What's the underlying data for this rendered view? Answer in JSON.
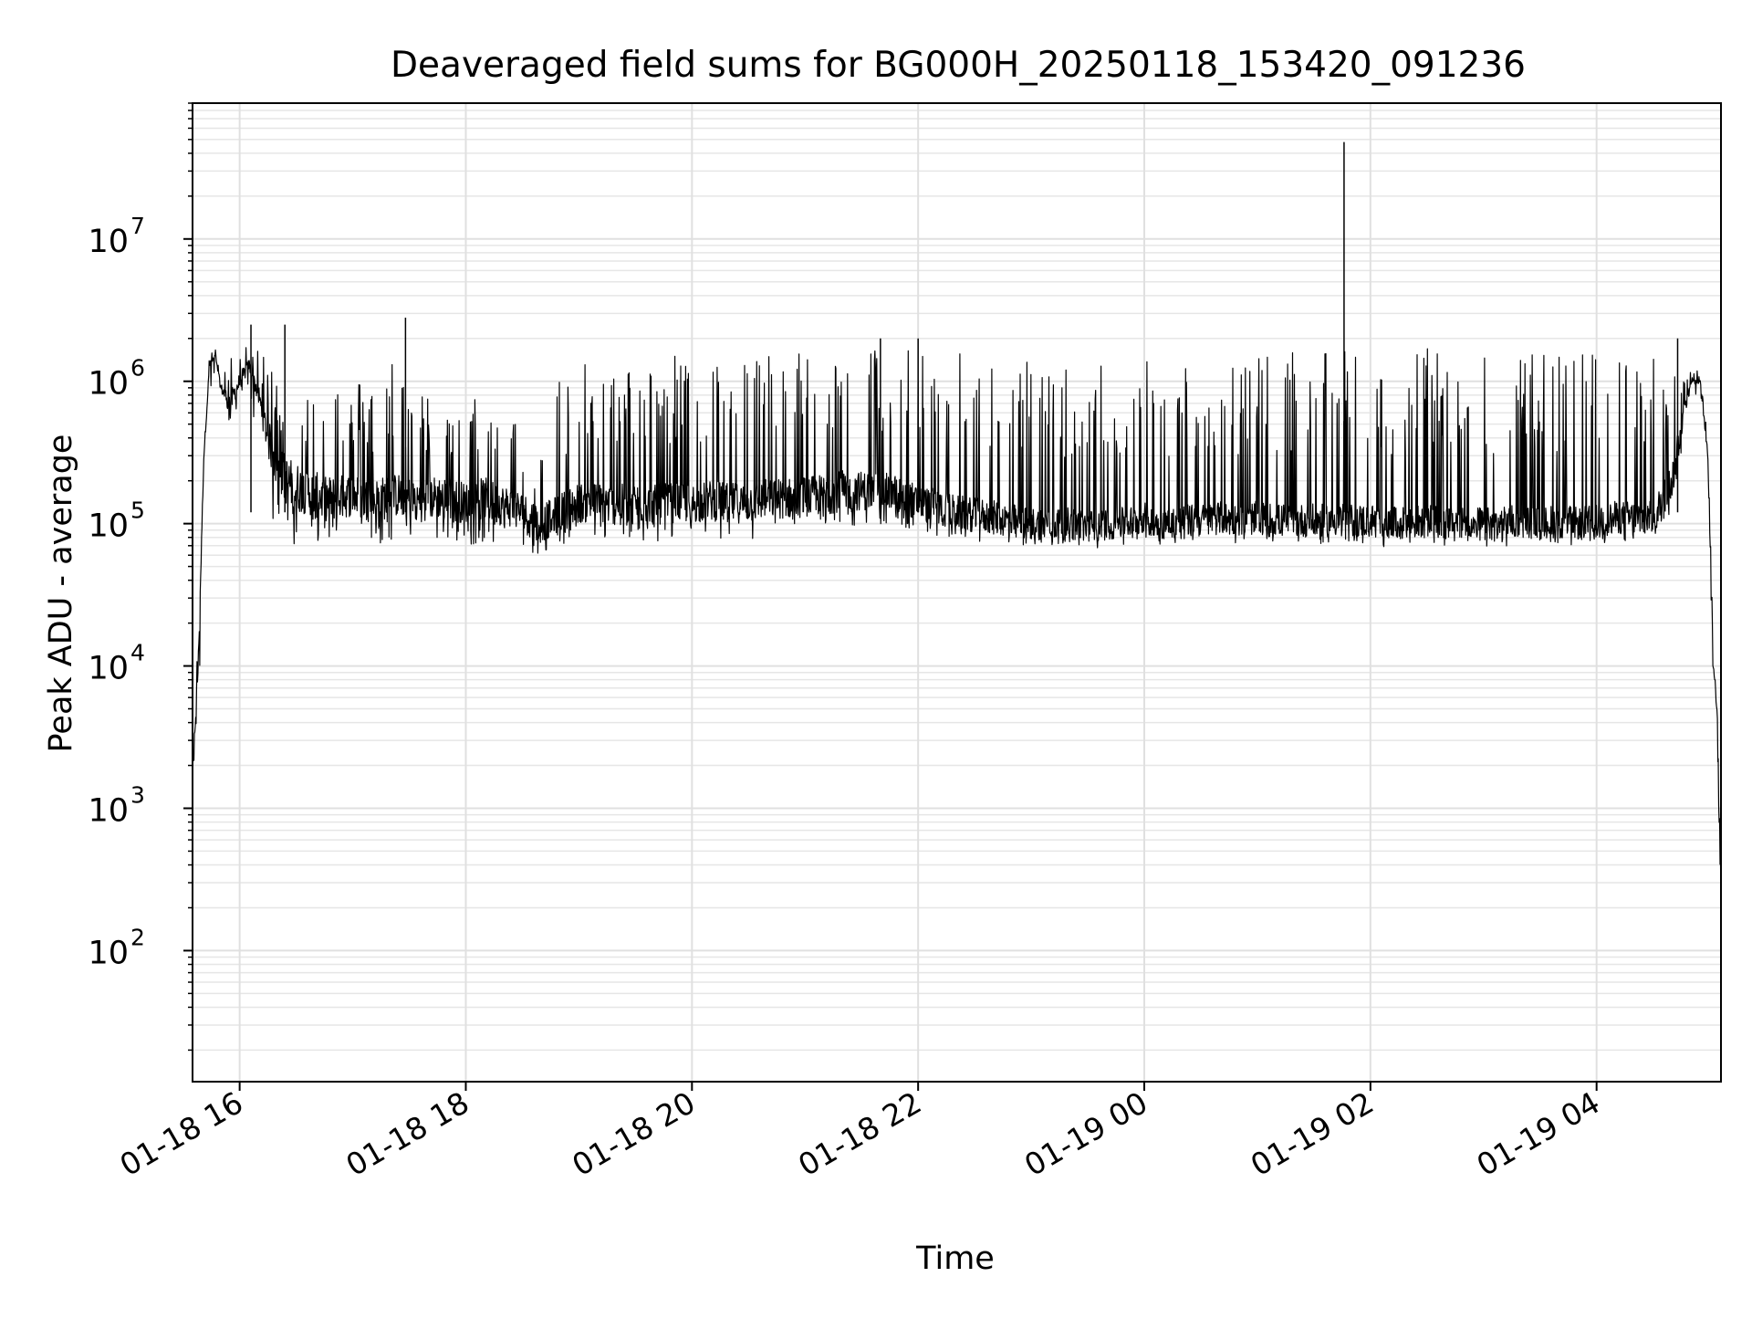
{
  "chart_data": {
    "type": "line",
    "title": "Deaveraged field sums for BG000H_20250118_153420_091236",
    "xlabel": "Time",
    "ylabel": "Peak ADU - average",
    "x_range": [
      "2025-01-18 15:35",
      "2025-01-19 05:06"
    ],
    "ylim": [
      12,
      90000000
    ],
    "y_scale": "log",
    "grid": true,
    "line_color": "#000000",
    "x_ticks": [
      {
        "t": "2025-01-18 16:00",
        "label": "01-18 16"
      },
      {
        "t": "2025-01-18 18:00",
        "label": "01-18 18"
      },
      {
        "t": "2025-01-18 20:00",
        "label": "01-18 20"
      },
      {
        "t": "2025-01-18 22:00",
        "label": "01-18 22"
      },
      {
        "t": "2025-01-19 00:00",
        "label": "01-19 00"
      },
      {
        "t": "2025-01-19 02:00",
        "label": "01-19 02"
      },
      {
        "t": "2025-01-19 04:00",
        "label": "01-19 04"
      }
    ],
    "y_ticks": [
      {
        "value": 100,
        "base": "10",
        "exp": "2"
      },
      {
        "value": 1000,
        "base": "10",
        "exp": "3"
      },
      {
        "value": 10000,
        "base": "10",
        "exp": "4"
      },
      {
        "value": 100000,
        "base": "10",
        "exp": "5"
      },
      {
        "value": 1000000,
        "base": "10",
        "exp": "6"
      },
      {
        "value": 10000000,
        "base": "10",
        "exp": "7"
      }
    ],
    "series": [
      {
        "x": [
          "2025-01-18 15:35",
          "2025-01-18 15:38",
          "2025-01-18 15:41",
          "2025-01-18 15:44",
          "2025-01-18 15:47",
          "2025-01-18 15:50",
          "2025-01-18 15:55",
          "2025-01-18 16:00",
          "2025-01-18 16:05",
          "2025-01-18 16:10",
          "2025-01-18 16:15",
          "2025-01-18 16:20",
          "2025-01-18 16:25",
          "2025-01-18 16:30",
          "2025-01-18 16:35",
          "2025-01-18 16:40",
          "2025-01-18 16:45",
          "2025-01-18 16:50",
          "2025-01-18 16:55",
          "2025-01-18 17:00",
          "2025-01-18 17:05",
          "2025-01-18 17:10",
          "2025-01-18 17:15",
          "2025-01-18 17:20",
          "2025-01-18 17:25",
          "2025-01-18 17:30",
          "2025-01-18 17:35",
          "2025-01-18 17:40",
          "2025-01-18 17:45",
          "2025-01-18 17:50",
          "2025-01-18 17:55",
          "2025-01-18 18:00",
          "2025-01-18 18:05",
          "2025-01-18 18:10",
          "2025-01-18 18:15",
          "2025-01-18 18:20",
          "2025-01-18 18:25",
          "2025-01-18 18:30",
          "2025-01-18 18:35",
          "2025-01-18 18:40",
          "2025-01-18 18:45",
          "2025-01-18 18:50",
          "2025-01-18 18:55",
          "2025-01-18 19:00",
          "2025-01-18 19:10",
          "2025-01-18 19:20",
          "2025-01-18 19:30",
          "2025-01-18 19:40",
          "2025-01-18 19:50",
          "2025-01-18 20:00",
          "2025-01-18 20:10",
          "2025-01-18 20:20",
          "2025-01-18 20:30",
          "2025-01-18 20:40",
          "2025-01-18 20:50",
          "2025-01-18 21:00",
          "2025-01-18 21:10",
          "2025-01-18 21:20",
          "2025-01-18 21:30",
          "2025-01-18 21:40",
          "2025-01-18 21:50",
          "2025-01-18 22:00",
          "2025-01-18 22:10",
          "2025-01-18 22:20",
          "2025-01-18 22:30",
          "2025-01-18 22:40",
          "2025-01-18 22:50",
          "2025-01-18 23:00",
          "2025-01-18 23:10",
          "2025-01-18 23:20",
          "2025-01-18 23:30",
          "2025-01-18 23:40",
          "2025-01-18 23:50",
          "2025-01-19 00:00",
          "2025-01-19 00:10",
          "2025-01-19 00:20",
          "2025-01-19 00:30",
          "2025-01-19 00:40",
          "2025-01-19 00:50",
          "2025-01-19 01:00",
          "2025-01-19 01:10",
          "2025-01-19 01:20",
          "2025-01-19 01:30",
          "2025-01-19 01:40",
          "2025-01-19 01:46",
          "2025-01-19 01:50",
          "2025-01-19 02:00",
          "2025-01-19 02:10",
          "2025-01-19 02:20",
          "2025-01-19 02:30",
          "2025-01-19 02:40",
          "2025-01-19 02:50",
          "2025-01-19 03:00",
          "2025-01-19 03:10",
          "2025-01-19 03:20",
          "2025-01-19 03:30",
          "2025-01-19 03:40",
          "2025-01-19 03:50",
          "2025-01-19 04:00",
          "2025-01-19 04:10",
          "2025-01-19 04:20",
          "2025-01-19 04:30",
          "2025-01-19 04:40",
          "2025-01-19 04:45",
          "2025-01-19 04:50",
          "2025-01-19 04:55",
          "2025-01-19 04:59",
          "2025-01-19 05:02",
          "2025-01-19 05:04",
          "2025-01-19 05:06"
        ],
        "y_low": [
          1200,
          5000,
          30000,
          700000,
          1100000,
          700000,
          500000,
          600000,
          1000000,
          300000,
          120000,
          90000,
          80000,
          70000,
          75000,
          72000,
          68000,
          70000,
          72000,
          80000,
          75000,
          70000,
          72000,
          75000,
          78000,
          72000,
          70000,
          75000,
          76000,
          70000,
          68000,
          70000,
          72000,
          75000,
          70000,
          72000,
          70000,
          65000,
          60000,
          60000,
          65000,
          70000,
          70000,
          75000,
          75000,
          72000,
          74000,
          73000,
          75000,
          76000,
          78000,
          74000,
          75000,
          80000,
          79000,
          82000,
          85000,
          90000,
          95000,
          98000,
          92000,
          85000,
          80000,
          78000,
          75000,
          72000,
          70000,
          70000,
          68000,
          70000,
          65000,
          68000,
          70000,
          80000,
          70000,
          74000,
          72000,
          75000,
          73000,
          74000,
          70000,
          72000,
          71000,
          73000,
          74000,
          72000,
          70000,
          68000,
          68000,
          70000,
          69000,
          70000,
          68000,
          68000,
          70000,
          70000,
          70000,
          70000,
          70000,
          75000,
          75000,
          75000,
          120000,
          300000,
          700000,
          800000,
          150000,
          7000,
          3000,
          200
        ],
        "y_mid": [
          1800,
          10000,
          300000,
          1300000,
          1500000,
          900000,
          700000,
          1000000,
          1300000,
          800000,
          400000,
          250000,
          200000,
          180000,
          170000,
          160000,
          150000,
          150000,
          155000,
          160000,
          150000,
          145000,
          150000,
          155000,
          160000,
          150000,
          145000,
          150000,
          155000,
          150000,
          145000,
          140000,
          145000,
          150000,
          140000,
          135000,
          130000,
          120000,
          110000,
          100000,
          110000,
          120000,
          130000,
          140000,
          140000,
          135000,
          140000,
          135000,
          140000,
          140000,
          145000,
          140000,
          140000,
          150000,
          150000,
          155000,
          160000,
          170000,
          170000,
          170000,
          160000,
          140000,
          130000,
          120000,
          115000,
          110000,
          105000,
          100000,
          100000,
          100000,
          95000,
          100000,
          100000,
          110000,
          100000,
          105000,
          105000,
          110000,
          105000,
          110000,
          105000,
          105000,
          105000,
          105000,
          110000,
          105000,
          105000,
          100000,
          100000,
          105000,
          100000,
          105000,
          100000,
          100000,
          105000,
          100000,
          105000,
          100000,
          105000,
          110000,
          110000,
          110000,
          200000,
          500000,
          1000000,
          1000000,
          300000,
          10000,
          5000,
          300
        ],
        "y_high": [
          2500,
          20000,
          400000,
          1600000,
          1700000,
          1200000,
          1500000,
          1700000,
          2000000,
          1600000,
          1400000,
          1200000,
          1000000,
          900000,
          900000,
          1000000,
          1300000,
          1500000,
          1000000,
          800000,
          1200000,
          1000000,
          700000,
          1600000,
          1300000,
          900000,
          1000000,
          800000,
          700000,
          900000,
          600000,
          500000,
          800000,
          600000,
          800000,
          500000,
          1000000,
          600000,
          400000,
          300000,
          700000,
          1500000,
          1000000,
          1300000,
          1400000,
          1200000,
          1500000,
          1300000,
          1600000,
          1500000,
          1600000,
          1200000,
          1700000,
          1700000,
          1800000,
          1700000,
          1900000,
          1800000,
          1700000,
          1800000,
          1800000,
          1800000,
          1700000,
          1600000,
          1700000,
          1600000,
          1500000,
          1400000,
          1300000,
          1500000,
          1200000,
          1400000,
          1000000,
          1600000,
          1500000,
          1400000,
          1500000,
          1600000,
          1500000,
          1600000,
          1500000,
          1600000,
          1600000,
          1600000,
          1700000,
          1600000,
          1650000,
          1600000,
          1700000,
          1700000,
          1650000,
          1700000,
          1650000,
          1700000,
          1650000,
          1700000,
          1650000,
          1600000,
          1650000,
          1600000,
          1600000,
          1500000,
          1500000,
          1200000,
          1400000,
          1100000,
          400000,
          15000,
          8000,
          400
        ]
      }
    ],
    "spikes": [
      {
        "x": "2025-01-19 01:46",
        "y": 48000000
      },
      {
        "x": "2025-01-18 17:28",
        "y": 2800000
      },
      {
        "x": "2025-01-18 16:06",
        "y": 2500000
      },
      {
        "x": "2025-01-18 16:24",
        "y": 2500000
      },
      {
        "x": "2025-01-18 22:00",
        "y": 2000000
      },
      {
        "x": "2025-01-18 21:40",
        "y": 2000000
      },
      {
        "x": "2025-01-19 04:43",
        "y": 2000000
      }
    ]
  }
}
